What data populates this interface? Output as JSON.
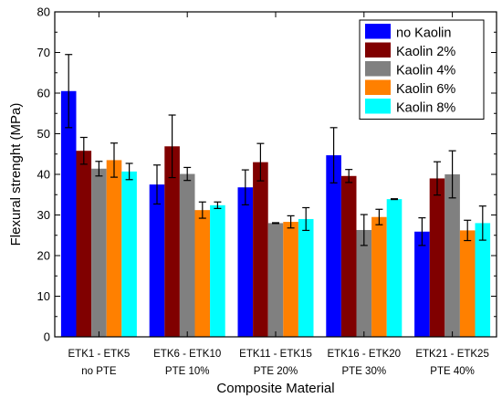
{
  "chart_data": {
    "type": "bar",
    "title": "",
    "xlabel": "Composite Material",
    "ylabel": "Flexural strenght (MPa)",
    "ylim": [
      0,
      80
    ],
    "yticks": [
      0,
      10,
      20,
      30,
      40,
      50,
      60,
      70,
      80
    ],
    "grid": false,
    "legend_position": "top-right",
    "error_bars": true,
    "categories": [
      [
        "ETK1 - ETK5",
        "no PTE"
      ],
      [
        "ETK6 - ETK10",
        "PTE 10%"
      ],
      [
        "ETK11 - ETK15",
        "PTE 20%"
      ],
      [
        "ETK16 - ETK20",
        "PTE 30%"
      ],
      [
        "ETK21 - ETK25",
        "PTE 40%"
      ]
    ],
    "series": [
      {
        "name": "no Kaolin",
        "color": "#0000ff",
        "values": [
          60.5,
          37.5,
          36.8,
          44.7,
          25.9
        ],
        "errors": [
          9.0,
          4.8,
          4.3,
          6.8,
          3.4
        ]
      },
      {
        "name": "Kaolin 2%",
        "color": "#800000",
        "values": [
          45.8,
          46.9,
          43.0,
          39.6,
          39.0
        ],
        "errors": [
          3.3,
          7.7,
          4.6,
          1.6,
          4.1
        ]
      },
      {
        "name": "Kaolin 4%",
        "color": "#808080",
        "values": [
          41.4,
          40.1,
          28.0,
          26.3,
          40.0
        ],
        "errors": [
          1.8,
          1.6,
          0.1,
          3.8,
          5.8
        ]
      },
      {
        "name": "Kaolin 6%",
        "color": "#ff8000",
        "values": [
          43.5,
          31.2,
          28.3,
          29.5,
          26.2
        ],
        "errors": [
          4.2,
          2.0,
          1.5,
          1.9,
          2.5
        ]
      },
      {
        "name": "Kaolin 8%",
        "color": "#00ffff",
        "values": [
          40.7,
          32.4,
          29.0,
          33.9,
          28.0
        ],
        "errors": [
          2.0,
          0.8,
          2.8,
          0.1,
          4.2
        ]
      }
    ]
  }
}
